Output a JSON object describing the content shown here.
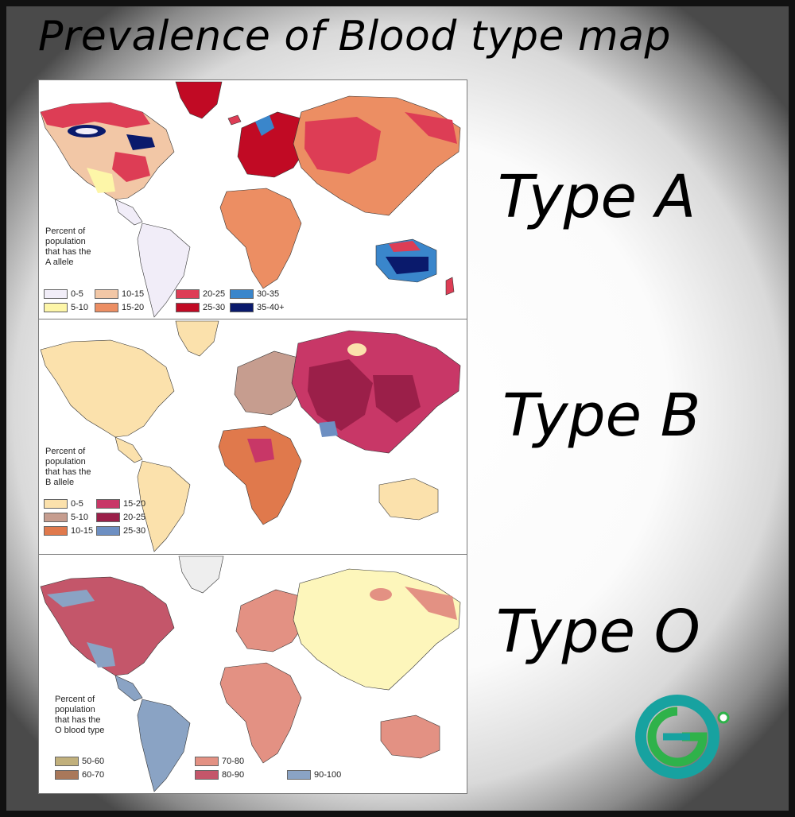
{
  "title": "Prevalence of Blood type map",
  "labels": {
    "a": "Type A",
    "b": "Type B",
    "o": "Type O"
  },
  "map_a": {
    "caption": "Percent of\npopulation\nthat has the\nA allele",
    "legend": [
      {
        "label": "0-5",
        "color": "#f1edf8"
      },
      {
        "label": "5-10",
        "color": "#fdf6a8"
      },
      {
        "label": "10-15",
        "color": "#f2c7a6"
      },
      {
        "label": "15-20",
        "color": "#ec8e63"
      },
      {
        "label": "20-25",
        "color": "#dd3d55"
      },
      {
        "label": "25-30",
        "color": "#c10a24"
      },
      {
        "label": "30-35",
        "color": "#3a86cb"
      },
      {
        "label": "35-40+",
        "color": "#0a1a6c"
      }
    ]
  },
  "map_b": {
    "caption": "Percent of\npopulation\nthat has the\nB allele",
    "legend": [
      {
        "label": "0-5",
        "color": "#fbe1ac"
      },
      {
        "label": "5-10",
        "color": "#c69d8f"
      },
      {
        "label": "10-15",
        "color": "#e0794c"
      },
      {
        "label": "15-20",
        "color": "#c83767"
      },
      {
        "label": "20-25",
        "color": "#9b1f49"
      },
      {
        "label": "25-30",
        "color": "#6d8fc2"
      }
    ]
  },
  "map_o": {
    "caption": "Percent of\npopulation\nthat has the\nO blood type",
    "legend": [
      {
        "label": "50-60",
        "color": "#c1b07c"
      },
      {
        "label": "60-70",
        "color": "#a9785a"
      },
      {
        "label": "70-80",
        "color": "#e39183"
      },
      {
        "label": "80-90",
        "color": "#c4566a"
      },
      {
        "label": "90-100",
        "color": "#8aa3c4"
      }
    ]
  }
}
